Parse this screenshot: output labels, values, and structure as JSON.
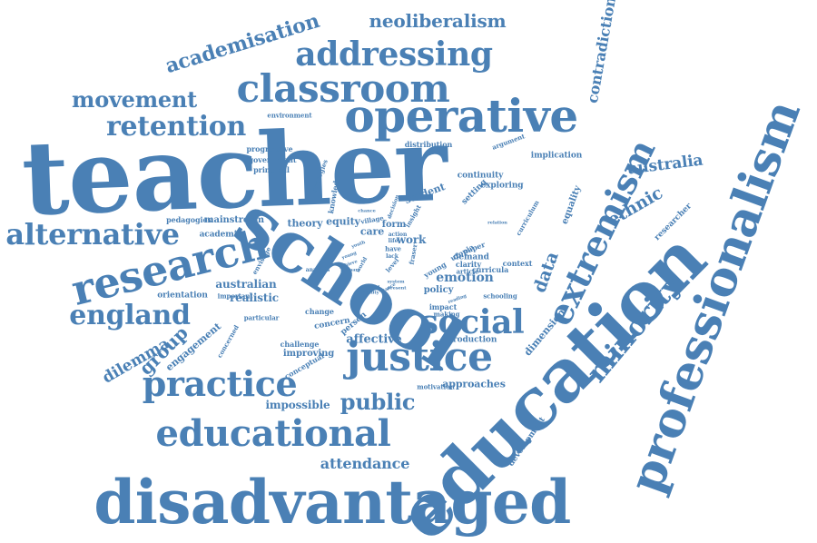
{
  "word_color": "#4a80b5",
  "words": [
    "teacher",
    "school",
    "education",
    "disadvantaged",
    "professionalism",
    "operative",
    "justice",
    "research",
    "educational",
    "classroom",
    "addressing",
    "extremism",
    "minority",
    "social",
    "practice",
    "alternative",
    "england",
    "retention",
    "movement",
    "public",
    "academisation",
    "neoliberalism",
    "contradiction",
    "australia",
    "ethnic",
    "group",
    "attendance",
    "data",
    "dilemma",
    "engagement",
    "impossible",
    "approaches",
    "affective",
    "emotion",
    "realistic",
    "australian",
    "mainstream",
    "theory",
    "equity",
    "care",
    "work",
    "student",
    "continuity",
    "exploring",
    "setting",
    "implication",
    "equality",
    "researcher",
    "dimension",
    "development",
    "policy",
    "production",
    "improving",
    "challenge",
    "conceptual",
    "orientation",
    "academic",
    "pedagogies",
    "progressive",
    "government",
    "principal",
    "environment",
    "distribution",
    "argument",
    "demand",
    "curricula",
    "context",
    "schooling",
    "paper",
    "utopia",
    "clarity",
    "article",
    "knowledge",
    "strategies",
    "insight",
    "concern",
    "person",
    "motivation",
    "impact",
    "making",
    "change",
    "particular",
    "important",
    "concerned",
    "envisage",
    "analysis",
    "form",
    "village",
    "chance",
    "decision",
    "relation",
    "curriculum",
    "youth",
    "young",
    "fraser",
    "world",
    "young",
    "reading",
    "extend",
    "quality",
    "achieve",
    "primary",
    "level",
    "stance",
    "have",
    "lack",
    "life",
    "system",
    "present",
    "action"
  ]
}
